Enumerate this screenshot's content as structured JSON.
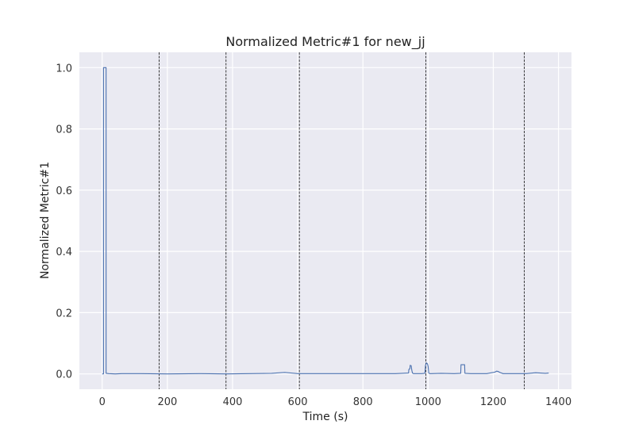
{
  "chart_data": {
    "type": "line",
    "title": "Normalized Metric#1 for new_jj",
    "xlabel": "Time (s)",
    "ylabel": "Normalized Metric#1",
    "xlim": [
      -70,
      1440
    ],
    "ylim": [
      -0.05,
      1.05
    ],
    "x_ticks": [
      0,
      200,
      400,
      600,
      800,
      1000,
      1200,
      1400
    ],
    "y_ticks": [
      0.0,
      0.2,
      0.4,
      0.6,
      0.8,
      1.0
    ],
    "x_tick_labels": [
      "0",
      "200",
      "400",
      "600",
      "800",
      "1000",
      "1200",
      "1400"
    ],
    "y_tick_labels": [
      "0.0",
      "0.2",
      "0.4",
      "0.6",
      "0.8",
      "1.0"
    ],
    "grid": true,
    "series": [
      {
        "color": "#4c72b0",
        "x": [
          0,
          4,
          4,
          12,
          12,
          20,
          40,
          60,
          120,
          200,
          300,
          380,
          450,
          520,
          560,
          600,
          700,
          800,
          900,
          940,
          941,
          944,
          945,
          948,
          950,
          952,
          955,
          960,
          980,
          990,
          992,
          995,
          998,
          1000,
          1002,
          1005,
          1010,
          1040,
          1080,
          1100,
          1101,
          1112,
          1113,
          1130,
          1180,
          1205,
          1210,
          1215,
          1220,
          1230,
          1250,
          1270,
          1300,
          1330,
          1345,
          1360,
          1370
        ],
        "y": [
          0.0,
          0.0,
          1.0,
          1.0,
          0.002,
          0.001,
          0.0,
          0.001,
          0.001,
          0.0,
          0.001,
          0.0,
          0.001,
          0.002,
          0.005,
          0.001,
          0.001,
          0.001,
          0.001,
          0.003,
          0.015,
          0.016,
          0.028,
          0.027,
          0.012,
          0.003,
          0.001,
          0.001,
          0.001,
          0.002,
          0.028,
          0.036,
          0.033,
          0.025,
          0.003,
          0.001,
          0.001,
          0.002,
          0.001,
          0.002,
          0.03,
          0.03,
          0.002,
          0.001,
          0.001,
          0.006,
          0.009,
          0.008,
          0.005,
          0.001,
          0.001,
          0.001,
          0.001,
          0.004,
          0.003,
          0.002,
          0.003
        ]
      }
    ],
    "vlines": [
      175,
      380,
      605,
      993,
      1295
    ]
  }
}
